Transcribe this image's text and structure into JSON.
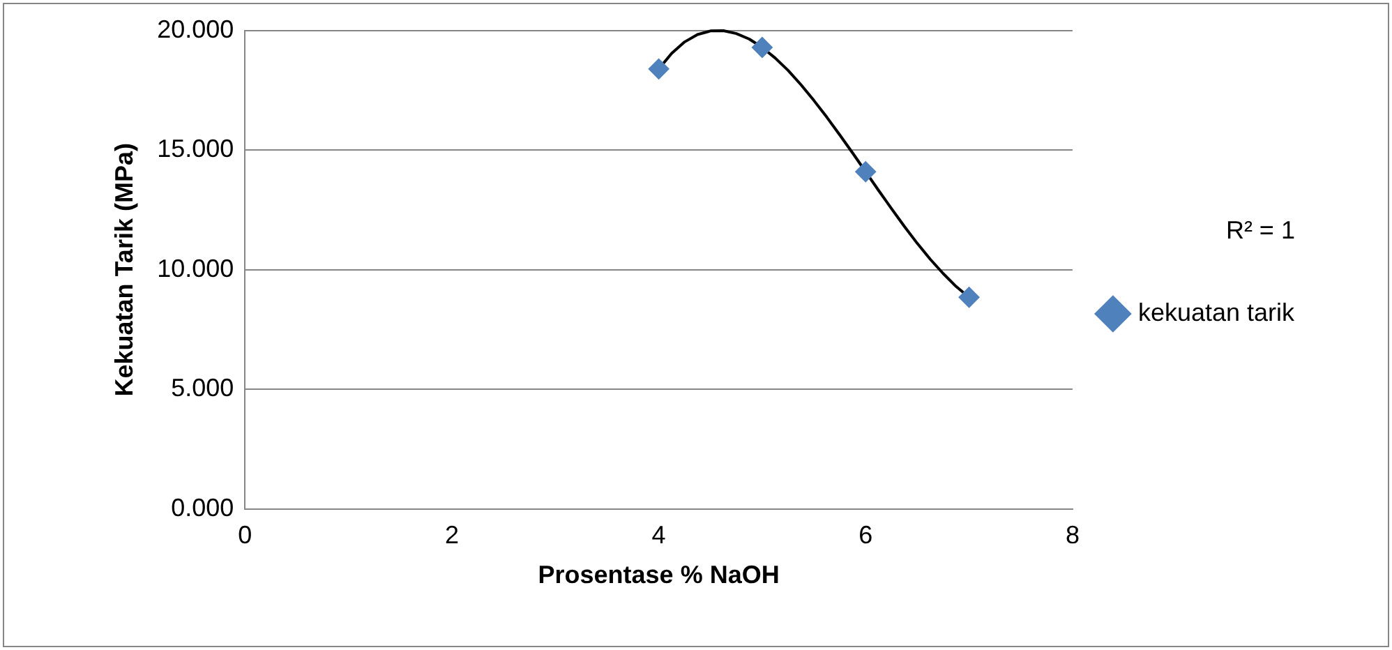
{
  "chart_data": {
    "type": "scatter",
    "xlabel": "Prosentase % NaOH",
    "ylabel": "Kekuatan Tarik (MPa)",
    "xlim": [
      0,
      8
    ],
    "xticks": [
      0,
      2,
      4,
      6,
      8
    ],
    "ylim": [
      0,
      20
    ],
    "yticks": [
      {
        "value": 0,
        "label": "0.000"
      },
      {
        "value": 5,
        "label": "5.000"
      },
      {
        "value": 10,
        "label": "10.000"
      },
      {
        "value": 15,
        "label": "15.000"
      },
      {
        "value": 20,
        "label": "20.000"
      }
    ],
    "grid": "y",
    "legend": "right",
    "marker": "diamond",
    "annotations": [
      "R² = 1"
    ],
    "series": [
      {
        "name": "kekuatan tarik",
        "color": "#4f81bd",
        "x": [
          4,
          5,
          6,
          7
        ],
        "values": [
          18.4,
          19.3,
          14.1,
          8.85
        ]
      },
      {
        "type": "line",
        "color": "#000000",
        "marker": "none",
        "line_style": "solid",
        "x": [
          4,
          4.125,
          4.25,
          4.375,
          4.5,
          4.625,
          4.75,
          4.875,
          5,
          5.125,
          5.25,
          5.375,
          5.5,
          5.625,
          5.75,
          5.875,
          6,
          6.125,
          6.25,
          6.375,
          6.5,
          6.625,
          6.75,
          6.875,
          7
        ],
        "values": [
          18.4,
          19.05,
          19.53,
          19.84,
          19.99,
          20,
          19.88,
          19.65,
          19.3,
          18.86,
          18.34,
          17.74,
          17.08,
          16.38,
          15.64,
          14.88,
          14.1,
          13.32,
          12.56,
          11.81,
          11.1,
          10.44,
          9.84,
          9.3,
          8.85
        ]
      }
    ]
  }
}
